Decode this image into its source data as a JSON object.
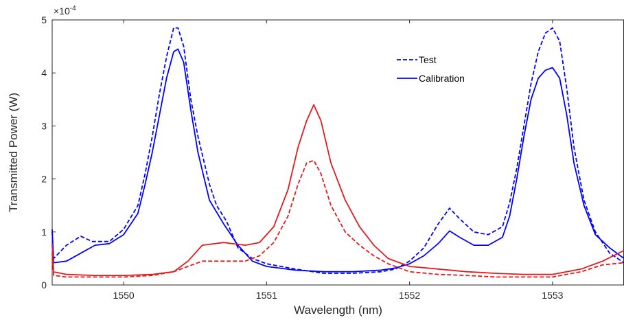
{
  "chart_data": {
    "type": "line",
    "title": "",
    "xlabel": "Wavelength (nm)",
    "ylabel": "Transmitted Power (W)",
    "y_exponent_label": "×10",
    "y_exponent_power": "-4",
    "xlim": [
      1549.5,
      1553.5
    ],
    "ylim": [
      0,
      5
    ],
    "x_ticks": [
      1550,
      1551,
      1552,
      1553
    ],
    "x_tick_labels": [
      "1550",
      "1551",
      "1552",
      "1553"
    ],
    "y_ticks": [
      0,
      1,
      2,
      3,
      4,
      5
    ],
    "y_tick_labels": [
      "0",
      "1",
      "2",
      "3",
      "4",
      "5"
    ],
    "grid": false,
    "legend_position": "top-right",
    "legend": [
      {
        "label": "Test",
        "style": "dashed"
      },
      {
        "label": "Calibration",
        "style": "solid"
      }
    ],
    "colors": {
      "blue": "#0000ff",
      "red": "#e41a1c",
      "axis": "#262626"
    },
    "series": [
      {
        "group": "Calibration",
        "color": "blue",
        "style": "solid",
        "points": [
          [
            1549.5,
            1.05
          ],
          [
            1549.51,
            0.42
          ],
          [
            1549.6,
            0.45
          ],
          [
            1549.7,
            0.6
          ],
          [
            1549.8,
            0.75
          ],
          [
            1549.9,
            0.78
          ],
          [
            1550.0,
            0.95
          ],
          [
            1550.1,
            1.35
          ],
          [
            1550.15,
            1.9
          ],
          [
            1550.2,
            2.5
          ],
          [
            1550.25,
            3.2
          ],
          [
            1550.3,
            3.9
          ],
          [
            1550.35,
            4.4
          ],
          [
            1550.38,
            4.45
          ],
          [
            1550.42,
            4.2
          ],
          [
            1550.47,
            3.3
          ],
          [
            1550.52,
            2.5
          ],
          [
            1550.6,
            1.6
          ],
          [
            1550.7,
            1.15
          ],
          [
            1550.8,
            0.75
          ],
          [
            1550.9,
            0.45
          ],
          [
            1551.0,
            0.35
          ],
          [
            1551.2,
            0.28
          ],
          [
            1551.4,
            0.25
          ],
          [
            1551.6,
            0.25
          ],
          [
            1551.8,
            0.28
          ],
          [
            1551.9,
            0.32
          ],
          [
            1552.0,
            0.4
          ],
          [
            1552.1,
            0.55
          ],
          [
            1552.2,
            0.78
          ],
          [
            1552.28,
            1.02
          ],
          [
            1552.35,
            0.9
          ],
          [
            1552.45,
            0.75
          ],
          [
            1552.55,
            0.75
          ],
          [
            1552.65,
            0.9
          ],
          [
            1552.7,
            1.3
          ],
          [
            1552.75,
            2.0
          ],
          [
            1552.8,
            2.8
          ],
          [
            1552.85,
            3.5
          ],
          [
            1552.9,
            3.9
          ],
          [
            1552.95,
            4.05
          ],
          [
            1553.0,
            4.1
          ],
          [
            1553.05,
            3.9
          ],
          [
            1553.1,
            3.2
          ],
          [
            1553.15,
            2.3
          ],
          [
            1553.22,
            1.5
          ],
          [
            1553.3,
            0.95
          ],
          [
            1553.4,
            0.7
          ],
          [
            1553.5,
            0.5
          ]
        ]
      },
      {
        "group": "Test",
        "color": "blue",
        "style": "dashed",
        "points": [
          [
            1549.5,
            1.0
          ],
          [
            1549.51,
            0.5
          ],
          [
            1549.6,
            0.75
          ],
          [
            1549.7,
            0.92
          ],
          [
            1549.78,
            0.82
          ],
          [
            1549.9,
            0.82
          ],
          [
            1550.0,
            1.05
          ],
          [
            1550.1,
            1.5
          ],
          [
            1550.15,
            2.1
          ],
          [
            1550.2,
            2.8
          ],
          [
            1550.25,
            3.6
          ],
          [
            1550.3,
            4.3
          ],
          [
            1550.35,
            4.85
          ],
          [
            1550.38,
            4.85
          ],
          [
            1550.42,
            4.5
          ],
          [
            1550.47,
            3.5
          ],
          [
            1550.52,
            2.8
          ],
          [
            1550.6,
            1.9
          ],
          [
            1550.65,
            1.5
          ],
          [
            1550.72,
            1.2
          ],
          [
            1550.8,
            0.7
          ],
          [
            1550.9,
            0.5
          ],
          [
            1551.0,
            0.4
          ],
          [
            1551.2,
            0.3
          ],
          [
            1551.4,
            0.22
          ],
          [
            1551.6,
            0.22
          ],
          [
            1551.8,
            0.25
          ],
          [
            1551.9,
            0.3
          ],
          [
            1552.0,
            0.45
          ],
          [
            1552.1,
            0.7
          ],
          [
            1552.2,
            1.15
          ],
          [
            1552.28,
            1.45
          ],
          [
            1552.35,
            1.25
          ],
          [
            1552.45,
            1.0
          ],
          [
            1552.55,
            0.95
          ],
          [
            1552.65,
            1.1
          ],
          [
            1552.7,
            1.55
          ],
          [
            1552.75,
            2.2
          ],
          [
            1552.8,
            3.0
          ],
          [
            1552.85,
            3.8
          ],
          [
            1552.9,
            4.4
          ],
          [
            1552.95,
            4.75
          ],
          [
            1553.0,
            4.85
          ],
          [
            1553.05,
            4.6
          ],
          [
            1553.1,
            3.7
          ],
          [
            1553.15,
            2.6
          ],
          [
            1553.22,
            1.6
          ],
          [
            1553.3,
            1.0
          ],
          [
            1553.4,
            0.6
          ],
          [
            1553.5,
            0.42
          ]
        ]
      },
      {
        "group": "Calibration",
        "color": "red",
        "style": "solid",
        "points": [
          [
            1549.5,
            0.78
          ],
          [
            1549.51,
            0.25
          ],
          [
            1549.6,
            0.2
          ],
          [
            1549.8,
            0.18
          ],
          [
            1550.0,
            0.18
          ],
          [
            1550.2,
            0.2
          ],
          [
            1550.35,
            0.25
          ],
          [
            1550.45,
            0.45
          ],
          [
            1550.55,
            0.75
          ],
          [
            1550.7,
            0.8
          ],
          [
            1550.85,
            0.75
          ],
          [
            1550.95,
            0.8
          ],
          [
            1551.05,
            1.1
          ],
          [
            1551.15,
            1.8
          ],
          [
            1551.22,
            2.6
          ],
          [
            1551.28,
            3.1
          ],
          [
            1551.33,
            3.4
          ],
          [
            1551.38,
            3.1
          ],
          [
            1551.45,
            2.3
          ],
          [
            1551.55,
            1.6
          ],
          [
            1551.65,
            1.1
          ],
          [
            1551.75,
            0.75
          ],
          [
            1551.85,
            0.5
          ],
          [
            1552.0,
            0.35
          ],
          [
            1552.2,
            0.3
          ],
          [
            1552.4,
            0.25
          ],
          [
            1552.6,
            0.22
          ],
          [
            1552.8,
            0.2
          ],
          [
            1553.0,
            0.2
          ],
          [
            1553.2,
            0.3
          ],
          [
            1553.35,
            0.45
          ],
          [
            1553.5,
            0.65
          ]
        ]
      },
      {
        "group": "Test",
        "color": "red",
        "style": "dashed",
        "points": [
          [
            1549.5,
            0.6
          ],
          [
            1549.51,
            0.18
          ],
          [
            1549.6,
            0.15
          ],
          [
            1549.8,
            0.15
          ],
          [
            1550.0,
            0.15
          ],
          [
            1550.2,
            0.18
          ],
          [
            1550.35,
            0.25
          ],
          [
            1550.45,
            0.35
          ],
          [
            1550.55,
            0.45
          ],
          [
            1550.7,
            0.45
          ],
          [
            1550.85,
            0.45
          ],
          [
            1550.95,
            0.55
          ],
          [
            1551.05,
            0.8
          ],
          [
            1551.15,
            1.3
          ],
          [
            1551.22,
            1.9
          ],
          [
            1551.28,
            2.3
          ],
          [
            1551.33,
            2.35
          ],
          [
            1551.38,
            2.1
          ],
          [
            1551.45,
            1.5
          ],
          [
            1551.55,
            1.0
          ],
          [
            1551.65,
            0.75
          ],
          [
            1551.75,
            0.55
          ],
          [
            1551.85,
            0.4
          ],
          [
            1552.0,
            0.25
          ],
          [
            1552.2,
            0.2
          ],
          [
            1552.4,
            0.18
          ],
          [
            1552.6,
            0.15
          ],
          [
            1552.8,
            0.15
          ],
          [
            1553.0,
            0.15
          ],
          [
            1553.2,
            0.25
          ],
          [
            1553.35,
            0.38
          ],
          [
            1553.5,
            0.42
          ]
        ]
      }
    ]
  }
}
